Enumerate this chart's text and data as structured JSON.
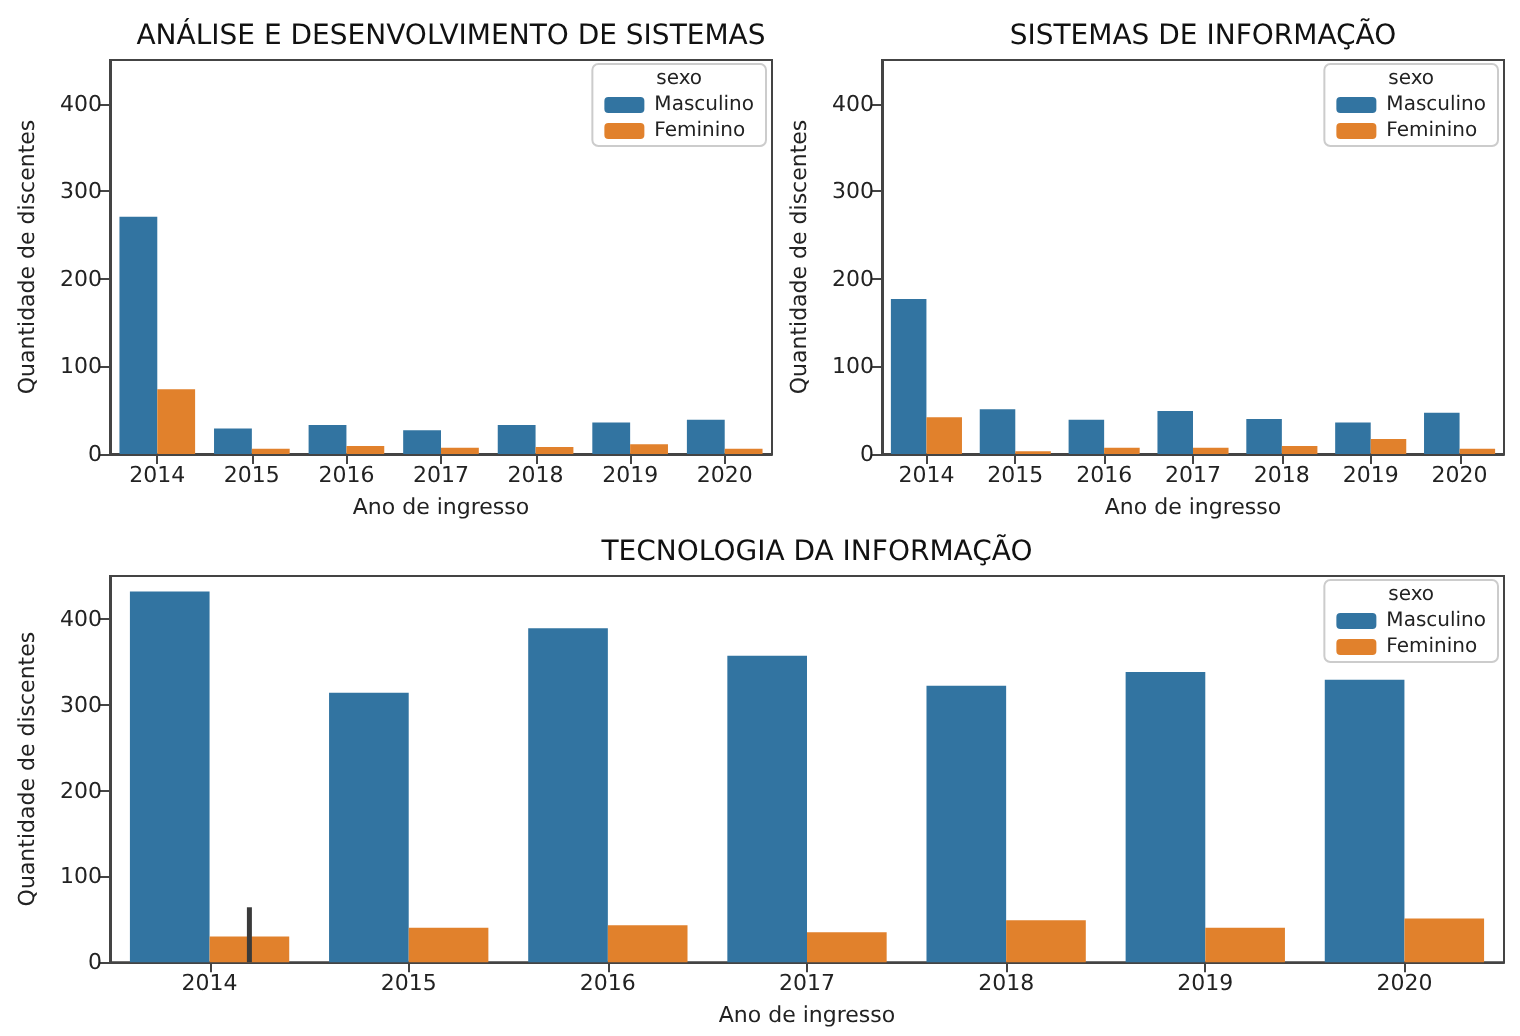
{
  "chart_data": [
    {
      "type": "bar",
      "title": "ANÁLISE E DESENVOLVIMENTO DE SISTEMAS",
      "xlabel": "Ano de ingresso",
      "ylabel": "Quantidade de discentes",
      "legend_title": "sexo",
      "legend": "top right",
      "grid": false,
      "categories": [
        "2014",
        "2015",
        "2016",
        "2017",
        "2018",
        "2019",
        "2020"
      ],
      "series": [
        {
          "name": "Masculino",
          "color": "#3274a1",
          "values": [
            271,
            29,
            33,
            27,
            33,
            36,
            39
          ]
        },
        {
          "name": "Feminino",
          "color": "#e1812c",
          "values": [
            74,
            6,
            9,
            7,
            8,
            11,
            6
          ]
        }
      ],
      "ylim": [
        0,
        450
      ],
      "yticks": [
        0,
        100,
        200,
        300,
        400
      ]
    },
    {
      "type": "bar",
      "title": "SISTEMAS DE INFORMAÇÃO",
      "xlabel": "Ano de ingresso",
      "ylabel": "Quantidade de discentes",
      "legend_title": "sexo",
      "legend": "top right",
      "grid": false,
      "categories": [
        "2014",
        "2015",
        "2016",
        "2017",
        "2018",
        "2019",
        "2020"
      ],
      "series": [
        {
          "name": "Masculino",
          "color": "#3274a1",
          "values": [
            177,
            51,
            39,
            49,
            40,
            36,
            47
          ]
        },
        {
          "name": "Feminino",
          "color": "#e1812c",
          "values": [
            42,
            3,
            7,
            7,
            9,
            17,
            6
          ]
        }
      ],
      "ylim": [
        0,
        450
      ],
      "yticks": [
        0,
        100,
        200,
        300,
        400
      ]
    },
    {
      "type": "bar",
      "title": "TECNOLOGIA DA INFORMAÇÃO",
      "xlabel": "Ano de ingresso",
      "ylabel": "Quantidade de discentes",
      "legend_title": "sexo",
      "legend": "top right",
      "grid": false,
      "categories": [
        "2014",
        "2015",
        "2016",
        "2017",
        "2018",
        "2019",
        "2020"
      ],
      "series": [
        {
          "name": "Masculino",
          "color": "#3274a1",
          "values": [
            432,
            314,
            389,
            357,
            322,
            338,
            329
          ]
        },
        {
          "name": "Feminino",
          "color": "#e1812c",
          "values": [
            30,
            40,
            43,
            35,
            49,
            40,
            51
          ],
          "errors": [
            [
              0,
              64
            ],
            null,
            null,
            null,
            null,
            null,
            null
          ]
        }
      ],
      "ylim": [
        0,
        450
      ],
      "yticks": [
        0,
        100,
        200,
        300,
        400
      ]
    }
  ]
}
